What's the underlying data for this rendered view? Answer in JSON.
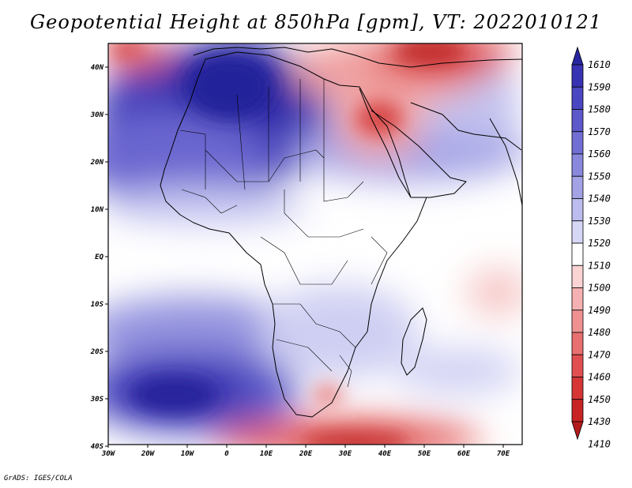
{
  "title": "Geopotential Height at 850hPa [gpm], VT: 2022010121",
  "footer": "GrADS: IGES/COLA",
  "map": {
    "lon_range": [
      -30,
      75
    ],
    "lat_range": [
      -40,
      45
    ],
    "x_ticks": [
      "30W",
      "20W",
      "10W",
      "0",
      "10E",
      "20E",
      "30E",
      "40E",
      "50E",
      "60E",
      "70E"
    ],
    "y_ticks": [
      "40N",
      "30N",
      "20N",
      "10N",
      "EQ",
      "10S",
      "20S",
      "30S",
      "40S"
    ]
  },
  "colorbar": {
    "levels": [
      "1610",
      "1590",
      "1580",
      "1570",
      "1560",
      "1550",
      "1540",
      "1530",
      "1520",
      "1510",
      "1500",
      "1490",
      "1480",
      "1470",
      "1460",
      "1450",
      "1430",
      "1410"
    ],
    "colors": [
      "#27269e",
      "#3733b3",
      "#4b46c2",
      "#5d59cb",
      "#716ed4",
      "#8a88dd",
      "#a3a2e5",
      "#bcbcee",
      "#d6d6f5",
      "#ffffff",
      "#fad3d3",
      "#f5b1b1",
      "#ef9191",
      "#e87070",
      "#e15050",
      "#d63636",
      "#c82424",
      "#b31b1b"
    ]
  }
}
